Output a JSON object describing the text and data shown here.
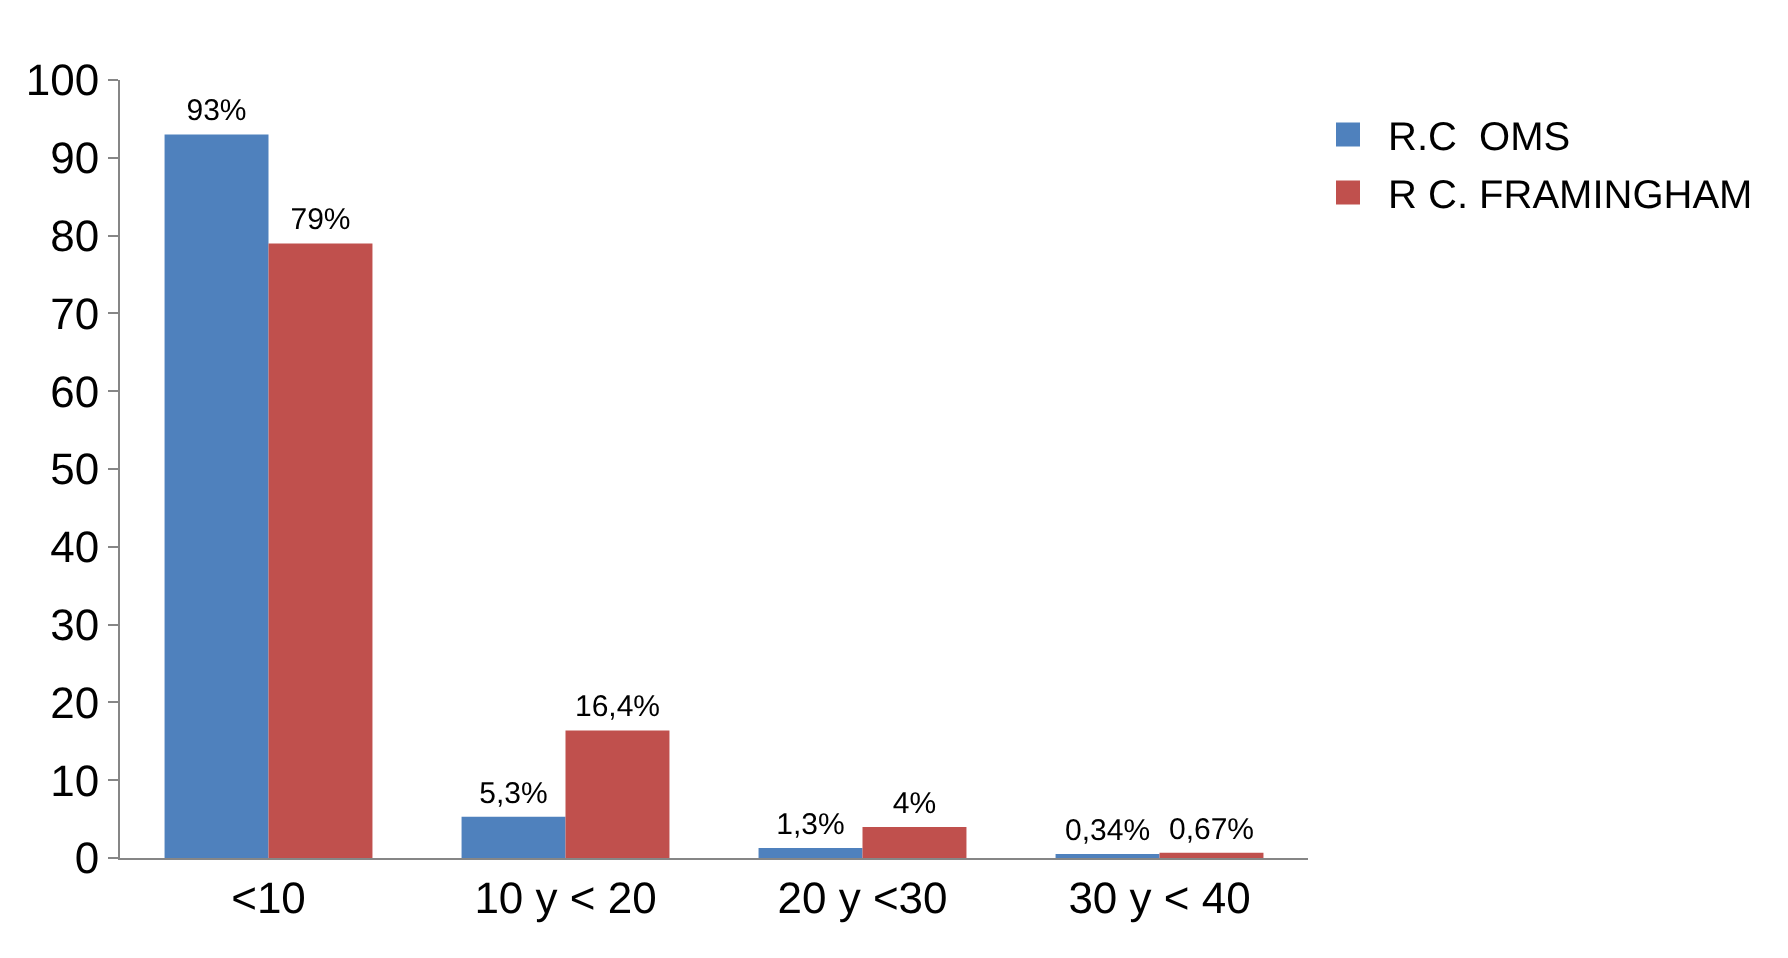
{
  "chart_data": {
    "type": "bar",
    "categories": [
      "<10",
      "10 y < 20",
      "20 y <30",
      "30 y < 40"
    ],
    "series": [
      {
        "name": "R.C  OMS",
        "color": "#4f81bd",
        "values": [
          93,
          5.3,
          1.3,
          0.34
        ],
        "value_labels": [
          "93%",
          "5,3%",
          "1,3%",
          "0,34%"
        ]
      },
      {
        "name": "R C. FRAMINGHAM",
        "color": "#c0504d",
        "values": [
          79,
          16.4,
          4,
          0.67
        ],
        "value_labels": [
          "79%",
          "16,4%",
          "4%",
          "0,67%"
        ]
      }
    ],
    "ylim": [
      0,
      100
    ],
    "yticks": [
      0,
      10,
      20,
      30,
      40,
      50,
      60,
      70,
      80,
      90,
      100
    ],
    "grid": false,
    "legend": "top right"
  }
}
